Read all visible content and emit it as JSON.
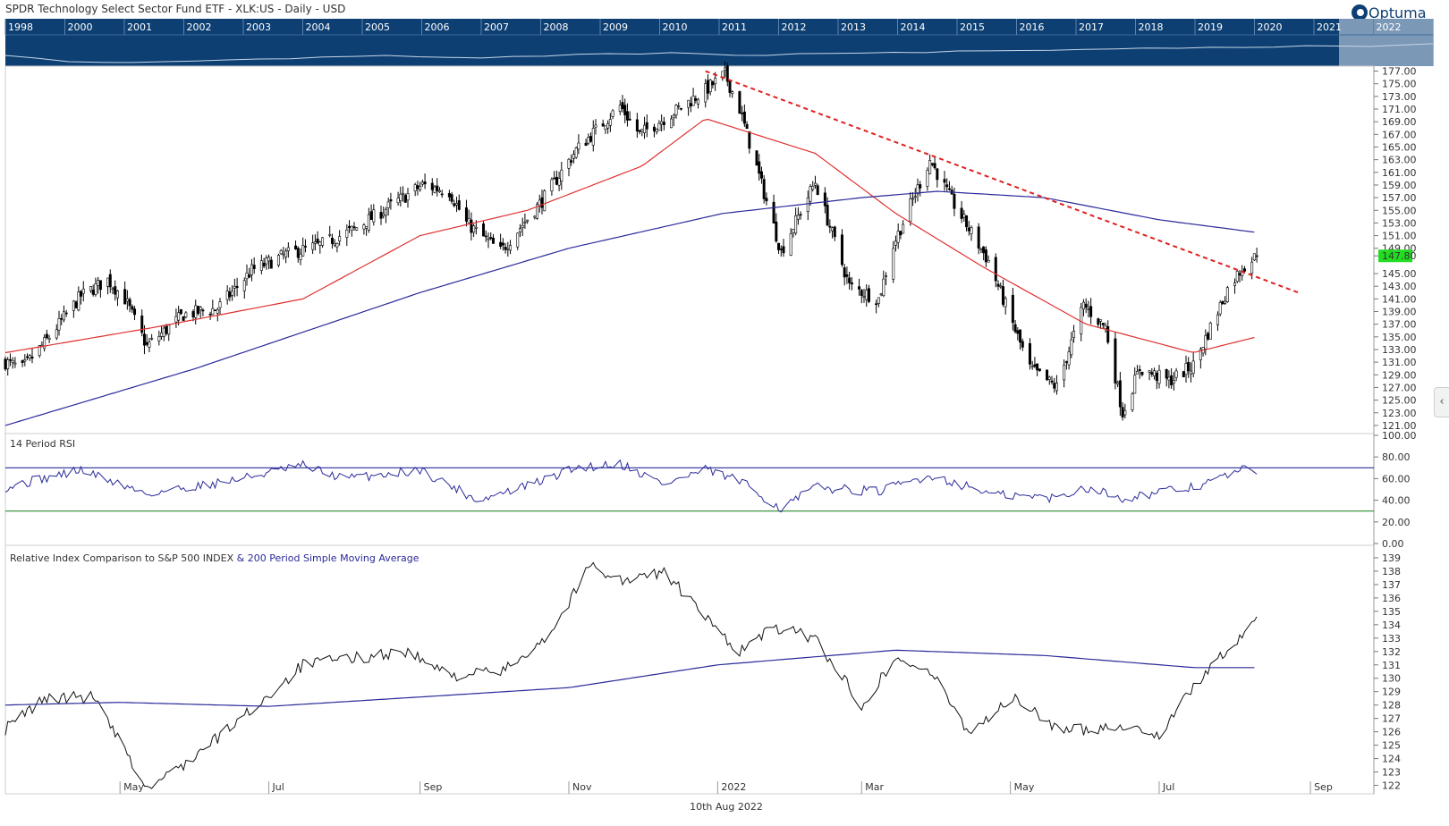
{
  "header": {
    "title": "SPDR Technology Select Sector Fund ETF - XLK:US - Daily - USD",
    "logo_text": "Optuma"
  },
  "navigator": {
    "years": [
      "1998",
      "2000",
      "2001",
      "2002",
      "2003",
      "2004",
      "2005",
      "2006",
      "2007",
      "2008",
      "2009",
      "2010",
      "2011",
      "2012",
      "2013",
      "2014",
      "2015",
      "2016",
      "2017",
      "2018",
      "2019",
      "2020",
      "2021",
      "2022"
    ],
    "colors": {
      "background": "#0d3f73",
      "window": "#8fa8c3",
      "line": "#c8d6e6"
    }
  },
  "x_axis": {
    "month_labels": [
      "May",
      "Jul",
      "Sep",
      "Nov",
      "2022",
      "Mar",
      "May",
      "Jul",
      "Sep"
    ],
    "date_label": "10th Aug 2022"
  },
  "chart_data": [
    {
      "type": "candlestick",
      "title": "SPDR Technology Select Sector Fund ETF - XLK:US - Daily - USD",
      "ylim": [
        120,
        177.5
      ],
      "yticks": [
        "177.00",
        "175.00",
        "173.00",
        "171.00",
        "169.00",
        "167.00",
        "165.00",
        "163.00",
        "161.00",
        "159.00",
        "157.00",
        "155.00",
        "153.00",
        "151.00",
        "149.00",
        "147.80",
        "145.00",
        "143.00",
        "141.00",
        "139.00",
        "137.00",
        "135.00",
        "133.00",
        "131.00",
        "129.00",
        "127.00",
        "125.00",
        "123.00",
        "121.00"
      ],
      "last_price": "147.80",
      "anchors": {
        "x": [
          "2021-03-15",
          "2021-03-22",
          "2021-03-31",
          "2021-04-15",
          "2021-04-26",
          "2021-05-03",
          "2021-05-12",
          "2021-05-27",
          "2021-06-10",
          "2021-06-24",
          "2021-07-08",
          "2021-07-22",
          "2021-08-05",
          "2021-08-19",
          "2021-09-02",
          "2021-09-13",
          "2021-09-20",
          "2021-10-04",
          "2021-10-21",
          "2021-11-04",
          "2021-11-22",
          "2021-11-30",
          "2021-12-14",
          "2021-12-27",
          "2022-01-04",
          "2022-01-10",
          "2022-01-27",
          "2022-02-10",
          "2022-02-24",
          "2022-03-08",
          "2022-03-14",
          "2022-03-29",
          "2022-04-07",
          "2022-04-22",
          "2022-05-09",
          "2022-05-20",
          "2022-05-31",
          "2022-06-09",
          "2022-06-16",
          "2022-06-23",
          "2022-07-05",
          "2022-07-15",
          "2022-07-29",
          "2022-08-04",
          "2022-08-10"
        ],
        "close": [
          131.0,
          130.0,
          134.0,
          141.5,
          144.0,
          141.0,
          133.5,
          138.5,
          139.5,
          145.5,
          148.0,
          149.5,
          152.0,
          155.5,
          159.0,
          158.0,
          153.0,
          148.5,
          156.5,
          164.5,
          171.5,
          167.0,
          170.5,
          174.0,
          176.5,
          171.0,
          148.5,
          159.5,
          143.0,
          141.0,
          149.5,
          163.0,
          156.5,
          147.0,
          130.0,
          127.0,
          140.0,
          136.5,
          123.0,
          130.0,
          128.0,
          130.5,
          142.5,
          146.0,
          147.8
        ]
      },
      "moving_averages": [
        {
          "period": 50,
          "color": "#e03030",
          "anchors": {
            "x": [
              "2021-03-15",
              "2021-05-15",
              "2021-07-15",
              "2021-09-01",
              "2021-10-15",
              "2021-12-01",
              "2021-12-27",
              "2022-02-10",
              "2022-03-15",
              "2022-04-20",
              "2022-06-01",
              "2022-07-15",
              "2022-08-10"
            ],
            "y": [
              132.5,
              136.5,
              141.0,
              151.0,
              155.0,
              162.0,
              169.5,
              164.0,
              154.5,
              146.0,
              137.0,
              132.5,
              135.0
            ]
          }
        },
        {
          "period": 200,
          "color": "#2a2a9a",
          "anchors": {
            "x": [
              "2021-03-15",
              "2021-06-01",
              "2021-09-01",
              "2021-11-01",
              "2022-01-03",
              "2022-03-01",
              "2022-04-01",
              "2022-05-15",
              "2022-07-01",
              "2022-08-10"
            ],
            "y": [
              121.0,
              130.0,
              142.0,
              149.0,
              154.5,
              157.0,
              158.0,
              157.0,
              153.5,
              151.5
            ]
          }
        }
      ],
      "trendline": {
        "style": "dashed",
        "color": "#e02020",
        "from": {
          "x": "2021-12-27",
          "y": 177.0
        },
        "to": {
          "x": "2022-08-27",
          "y": 142.0
        }
      }
    },
    {
      "type": "line",
      "title": "14 Period RSI",
      "ylim": [
        0,
        100
      ],
      "yticks": [
        "100.00",
        "80.00",
        "60.00",
        "40.00",
        "20.00",
        "0.00"
      ],
      "levels": [
        {
          "value": 70,
          "color": "#2a2a9a"
        },
        {
          "value": 30,
          "color": "#2a8a2a"
        }
      ],
      "line_color": "#2a2a9a",
      "anchors": {
        "x": [
          "2021-03-15",
          "2021-04-15",
          "2021-05-12",
          "2021-06-15",
          "2021-07-15",
          "2021-08-01",
          "2021-09-01",
          "2021-09-25",
          "2021-10-20",
          "2021-11-04",
          "2021-11-22",
          "2021-12-10",
          "2021-12-27",
          "2022-01-10",
          "2022-01-27",
          "2022-02-10",
          "2022-03-08",
          "2022-03-29",
          "2022-04-25",
          "2022-05-20",
          "2022-06-01",
          "2022-06-16",
          "2022-07-15",
          "2022-08-04",
          "2022-08-10"
        ],
        "y": [
          52,
          68,
          46,
          58,
          72,
          60,
          68,
          40,
          57,
          70,
          74,
          55,
          68,
          58,
          32,
          52,
          48,
          63,
          45,
          42,
          52,
          42,
          52,
          68,
          68
        ]
      }
    },
    {
      "type": "line",
      "title": "Relative Index Comparison to S&P 500 INDEX",
      "ma_label": "& 200 Period Simple Moving Average",
      "ylim": [
        121.5,
        139.8
      ],
      "yticks": [
        "139",
        "138",
        "137",
        "136",
        "135",
        "134",
        "133",
        "132",
        "131",
        "130",
        "129",
        "128",
        "127",
        "126",
        "125",
        "124",
        "123",
        "122"
      ],
      "line_color": "#111111",
      "ma_color": "#2a2a9a",
      "anchors": {
        "x": [
          "2021-03-15",
          "2021-03-31",
          "2021-04-20",
          "2021-05-12",
          "2021-06-01",
          "2021-06-25",
          "2021-07-15",
          "2021-08-05",
          "2021-08-26",
          "2021-09-13",
          "2021-10-05",
          "2021-10-25",
          "2021-11-10",
          "2021-11-24",
          "2021-12-10",
          "2021-12-27",
          "2022-01-10",
          "2022-01-24",
          "2022-02-10",
          "2022-03-01",
          "2022-03-15",
          "2022-03-29",
          "2022-04-14",
          "2022-05-02",
          "2022-05-23",
          "2022-06-15",
          "2022-07-01",
          "2022-07-20",
          "2022-08-04",
          "2022-08-10"
        ],
        "y": [
          126.2,
          128.5,
          128.6,
          121.7,
          124.2,
          127.8,
          131.0,
          131.5,
          132.0,
          130.2,
          130.5,
          133.5,
          138.5,
          137.2,
          138.0,
          134.5,
          132.0,
          133.8,
          133.0,
          128.0,
          131.5,
          130.5,
          126.0,
          128.5,
          126.0,
          126.5,
          125.8,
          130.5,
          133.0,
          134.8
        ]
      },
      "ma_anchors": {
        "x": [
          "2021-03-15",
          "2021-05-01",
          "2021-07-01",
          "2021-09-01",
          "2021-11-01",
          "2022-01-01",
          "2022-03-15",
          "2022-05-15",
          "2022-07-15",
          "2022-08-10"
        ],
        "y": [
          128.0,
          128.2,
          127.9,
          128.6,
          129.3,
          131.0,
          132.1,
          131.7,
          130.8,
          130.8
        ]
      }
    }
  ]
}
